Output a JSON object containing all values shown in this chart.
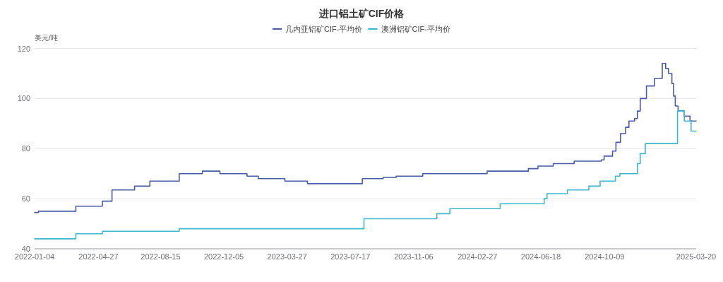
{
  "chart_data": {
    "type": "step",
    "title": "进口铝土矿CIF价格",
    "ylabel": "美元/吨",
    "xlim": [
      "2022-01-04",
      "2025-03-20"
    ],
    "xticks": [
      "2022-01-04",
      "2022-04-27",
      "2022-08-15",
      "2022-12-05",
      "2023-03-27",
      "2023-07-17",
      "2023-11-06",
      "2024-02-27",
      "2024-06-18",
      "2024-10-09",
      "2025-03-20"
    ],
    "ylim": [
      40,
      120
    ],
    "yticks": [
      40,
      60,
      80,
      100,
      120
    ],
    "grid": "y",
    "legend": "top",
    "series": [
      {
        "name": "几内亚铝矿CIF-平均价",
        "color": "#4a5aa6",
        "x": [
          "2022-01-04",
          "2022-01-11",
          "2022-03-18",
          "2022-05-04",
          "2022-05-21",
          "2022-06-30",
          "2022-07-27",
          "2022-09-17",
          "2022-10-28",
          "2022-11-28",
          "2023-01-15",
          "2023-02-04",
          "2023-03-23",
          "2023-05-02",
          "2023-08-07",
          "2023-09-13",
          "2023-10-06",
          "2023-11-22",
          "2024-03-15",
          "2024-05-27",
          "2024-06-13",
          "2024-07-10",
          "2024-08-16",
          "2024-10-03",
          "2024-10-08",
          "2024-10-23",
          "2024-10-29",
          "2024-11-06",
          "2024-11-15",
          "2024-11-21",
          "2024-12-01",
          "2024-12-06",
          "2024-12-11",
          "2024-12-22",
          "2025-01-05",
          "2025-01-19",
          "2025-01-25",
          "2025-01-30",
          "2025-02-05",
          "2025-02-08",
          "2025-02-11",
          "2025-02-16",
          "2025-02-27",
          "2025-03-09",
          "2025-03-20"
        ],
        "values": [
          54.5,
          55,
          57,
          59,
          63.5,
          65,
          67,
          70,
          71,
          70,
          69,
          68,
          67,
          66,
          68,
          68.5,
          69,
          70,
          71,
          72,
          73,
          74,
          75,
          75.5,
          77,
          79,
          82.5,
          86,
          88.5,
          91,
          92,
          95,
          100,
          105,
          108,
          114,
          112,
          110,
          106,
          101,
          97,
          95,
          93,
          91,
          91
        ]
      },
      {
        "name": "澳洲铝矿CIF-平均价",
        "color": "#3db7cd",
        "x": [
          "2022-01-04",
          "2022-03-18",
          "2022-05-04",
          "2022-09-17",
          "2023-08-10",
          "2023-12-17",
          "2024-01-09",
          "2024-04-07",
          "2024-06-24",
          "2024-06-29",
          "2024-08-04",
          "2024-09-11",
          "2024-10-01",
          "2024-10-28",
          "2024-11-05",
          "2024-12-06",
          "2024-12-11",
          "2024-12-20",
          "2025-02-15",
          "2025-02-27",
          "2025-03-11",
          "2025-03-20"
        ],
        "values": [
          44,
          46,
          47,
          48,
          52,
          54,
          56,
          58,
          60,
          62,
          63.5,
          65,
          67,
          69,
          70,
          74,
          78,
          82,
          95,
          91,
          87,
          87
        ]
      }
    ]
  }
}
